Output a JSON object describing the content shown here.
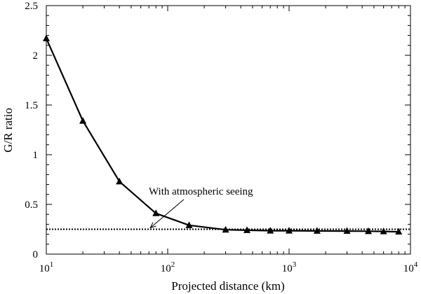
{
  "chart_data": {
    "type": "line",
    "xlabel": "Projected distance (km)",
    "ylabel": "G/R ratio",
    "xscale": "log",
    "xlim": [
      10,
      10000
    ],
    "ylim": [
      0,
      2.5
    ],
    "x_ticks": [
      10,
      100,
      1000,
      10000
    ],
    "x_tick_labels": [
      {
        "base": "10",
        "exp": "1"
      },
      {
        "base": "10",
        "exp": "2"
      },
      {
        "base": "10",
        "exp": "3"
      },
      {
        "base": "10",
        "exp": "4"
      }
    ],
    "y_ticks": [
      0,
      0.5,
      1,
      1.5,
      2,
      2.5
    ],
    "y_tick_labels": [
      "0",
      "0.5",
      "1",
      "1.5",
      "2",
      "2.5"
    ],
    "grid": false,
    "series": [
      {
        "marker": "triangle",
        "line_style": "solid",
        "color": "#000000",
        "x": [
          10,
          20,
          40,
          80,
          150,
          300,
          450,
          700,
          1000,
          1700,
          3000,
          4500,
          6000,
          8000
        ],
        "y": [
          2.17,
          1.34,
          0.73,
          0.41,
          0.29,
          0.245,
          0.24,
          0.235,
          0.235,
          0.233,
          0.232,
          0.23,
          0.228,
          0.225
        ]
      },
      {
        "marker": "none",
        "line_style": "dotted",
        "color": "#000000",
        "x": [
          10,
          10000
        ],
        "y": [
          0.25,
          0.25
        ]
      }
    ],
    "annotations": [
      {
        "text": "With atmospheric seeing",
        "arrow_to": {
          "x": 70,
          "y": 0.25
        }
      }
    ]
  }
}
